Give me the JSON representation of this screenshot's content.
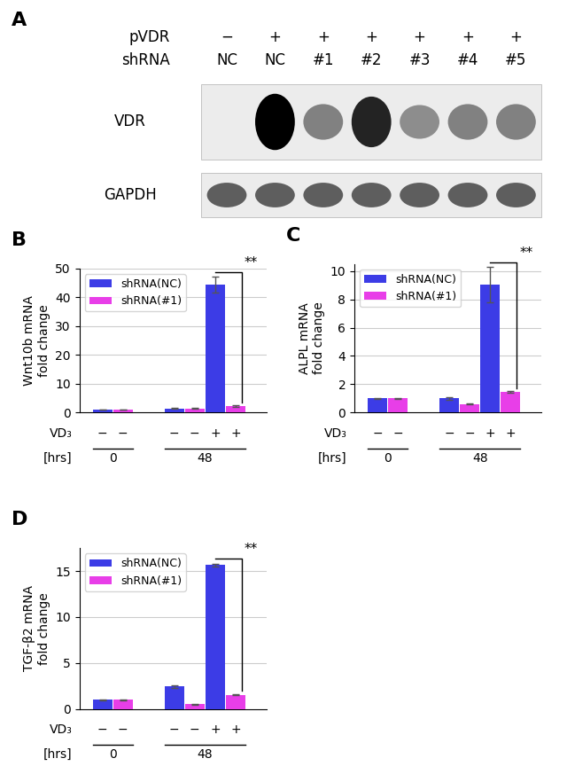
{
  "blot": {
    "label": "A",
    "headers": [
      {
        "label": "pVDR",
        "values": [
          "−",
          "+",
          "+",
          "+",
          "+",
          "+",
          "+"
        ]
      },
      {
        "label": "shRNA",
        "values": [
          "NC",
          "NC",
          "#1",
          "#2",
          "#3",
          "#4",
          "#5"
        ]
      }
    ],
    "bands": [
      {
        "label": "VDR",
        "levels": [
          0,
          1,
          0.45,
          0.85,
          0.4,
          0.45,
          0.45
        ]
      },
      {
        "label": "GAPDH",
        "levels": [
          0.6,
          0.6,
          0.6,
          0.6,
          0.6,
          0.6,
          0.6
        ]
      }
    ]
  },
  "chart_data": [
    {
      "label": "B",
      "type": "bar",
      "y_label": "Wnt10b mRNA\nfold change",
      "categories": [
        null,
        null,
        null
      ],
      "series": [
        {
          "name": "shRNA(NC)",
          "color": "#3c3ce6",
          "values": [
            1.0,
            1.4,
            44.5
          ],
          "errors": [
            0.1,
            0.1,
            2.8
          ]
        },
        {
          "name": "shRNA(#1)",
          "color": "#e83ee8",
          "values": [
            1.0,
            1.4,
            2.3
          ],
          "errors": [
            0.1,
            0.1,
            0.3
          ]
        }
      ],
      "ylim": [
        0,
        50
      ],
      "yticks": [
        0,
        10,
        20,
        30,
        40,
        50
      ],
      "grid": true,
      "legend": "upper left",
      "tick_labels": "y",
      "x_rows": [
        {
          "label": "VD₃",
          "values": [
            "−",
            "−",
            "+"
          ]
        }
      ],
      "x_spans": {
        "label": "[hrs]",
        "spans": [
          {
            "text": "0",
            "groups": [
              0
            ]
          },
          {
            "text": "48",
            "groups": [
              1,
              2
            ]
          }
        ]
      },
      "annotations": [
        {
          "text": "**",
          "group": 2
        }
      ]
    },
    {
      "label": "C",
      "type": "bar",
      "y_label": "ALPL mRNA\nfold change",
      "categories": [
        null,
        null,
        null
      ],
      "series": [
        {
          "name": "shRNA(NC)",
          "color": "#3c3ce6",
          "values": [
            1.0,
            1.0,
            9.05
          ],
          "errors": [
            0.05,
            0.1,
            1.25
          ]
        },
        {
          "name": "shRNA(#1)",
          "color": "#e83ee8",
          "values": [
            1.0,
            0.6,
            1.45
          ],
          "errors": [
            0.05,
            0.03,
            0.05
          ]
        }
      ],
      "ylim": [
        0,
        10.5
      ],
      "yticks": [
        0,
        2,
        4,
        6,
        8,
        10
      ],
      "grid": true,
      "legend": "upper left",
      "tick_labels": "y",
      "x_rows": [
        {
          "label": "VD₃",
          "values": [
            "−",
            "−",
            "+"
          ]
        }
      ],
      "x_spans": {
        "label": "[hrs]",
        "spans": [
          {
            "text": "0",
            "groups": [
              0
            ]
          },
          {
            "text": "48",
            "groups": [
              1,
              2
            ]
          }
        ]
      },
      "annotations": [
        {
          "text": "**",
          "group": 2
        }
      ]
    },
    {
      "label": "D",
      "type": "bar",
      "y_label": "TGF-β2 mRNA\nfold change",
      "categories": [
        null,
        null,
        null
      ],
      "series": [
        {
          "name": "shRNA(NC)",
          "color": "#3c3ce6",
          "values": [
            1.0,
            2.45,
            15.65
          ],
          "errors": [
            0.05,
            0.15,
            0.15
          ]
        },
        {
          "name": "shRNA(#1)",
          "color": "#e83ee8",
          "values": [
            1.0,
            0.5,
            1.55
          ],
          "errors": [
            0.05,
            0.03,
            0.05
          ]
        }
      ],
      "ylim": [
        0,
        17.5
      ],
      "yticks": [
        0,
        5,
        10,
        15
      ],
      "grid": true,
      "legend": "upper left",
      "tick_labels": "y",
      "x_rows": [
        {
          "label": "VD₃",
          "values": [
            "−",
            "−",
            "+"
          ]
        }
      ],
      "x_spans": {
        "label": "[hrs]",
        "spans": [
          {
            "text": "0",
            "groups": [
              0
            ]
          },
          {
            "text": "48",
            "groups": [
              1,
              2
            ]
          }
        ]
      },
      "annotations": [
        {
          "text": "**",
          "group": 2
        }
      ]
    }
  ]
}
